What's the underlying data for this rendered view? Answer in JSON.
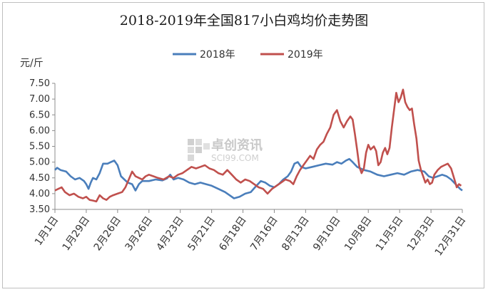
{
  "chart_data": {
    "type": "line",
    "title": "2018-2019年全国817小白鸡均价走势图",
    "ylabel": "元/斤",
    "ylim": [
      3.5,
      7.5
    ],
    "yticks": [
      "3.50",
      "4.00",
      "4.50",
      "5.00",
      "5.50",
      "6.00",
      "6.50",
      "7.00",
      "7.50"
    ],
    "xticks": [
      "1月1日",
      "1月29日",
      "2月26日",
      "3月26日",
      "4月23日",
      "5月21日",
      "6月18日",
      "7月16日",
      "8月13日",
      "9月10日",
      "10月8日",
      "11月5日",
      "12月3日",
      "12月31日"
    ],
    "xtick_days": [
      0,
      28,
      56,
      84,
      112,
      140,
      168,
      196,
      224,
      252,
      280,
      308,
      336,
      364
    ],
    "legend_position": "top",
    "grid": false,
    "watermark": {
      "text": "卓创资讯",
      "sub": "SCI99.COM"
    },
    "series": [
      {
        "name": "2018年",
        "color": "#4a7ebb",
        "points": [
          [
            0,
            4.75
          ],
          [
            2,
            4.82
          ],
          [
            5,
            4.75
          ],
          [
            10,
            4.7
          ],
          [
            14,
            4.55
          ],
          [
            18,
            4.45
          ],
          [
            22,
            4.5
          ],
          [
            26,
            4.4
          ],
          [
            28,
            4.3
          ],
          [
            30,
            4.15
          ],
          [
            32,
            4.35
          ],
          [
            34,
            4.5
          ],
          [
            37,
            4.45
          ],
          [
            40,
            4.65
          ],
          [
            43,
            4.95
          ],
          [
            47,
            4.95
          ],
          [
            50,
            5.0
          ],
          [
            53,
            5.05
          ],
          [
            56,
            4.9
          ],
          [
            59,
            4.55
          ],
          [
            62,
            4.45
          ],
          [
            65,
            4.35
          ],
          [
            69,
            4.3
          ],
          [
            72,
            4.1
          ],
          [
            75,
            4.3
          ],
          [
            78,
            4.4
          ],
          [
            84,
            4.4
          ],
          [
            90,
            4.45
          ],
          [
            96,
            4.42
          ],
          [
            100,
            4.48
          ],
          [
            103,
            4.6
          ],
          [
            106,
            4.45
          ],
          [
            110,
            4.5
          ],
          [
            115,
            4.45
          ],
          [
            120,
            4.35
          ],
          [
            125,
            4.3
          ],
          [
            130,
            4.35
          ],
          [
            135,
            4.3
          ],
          [
            140,
            4.25
          ],
          [
            146,
            4.15
          ],
          [
            152,
            4.05
          ],
          [
            156,
            3.95
          ],
          [
            160,
            3.85
          ],
          [
            165,
            3.9
          ],
          [
            170,
            4.0
          ],
          [
            175,
            4.05
          ],
          [
            180,
            4.25
          ],
          [
            184,
            4.4
          ],
          [
            188,
            4.35
          ],
          [
            192,
            4.25
          ],
          [
            196,
            4.2
          ],
          [
            200,
            4.3
          ],
          [
            204,
            4.45
          ],
          [
            208,
            4.55
          ],
          [
            211,
            4.7
          ],
          [
            214,
            4.95
          ],
          [
            217,
            5.0
          ],
          [
            220,
            4.85
          ],
          [
            224,
            4.8
          ],
          [
            230,
            4.85
          ],
          [
            236,
            4.9
          ],
          [
            242,
            4.95
          ],
          [
            248,
            4.92
          ],
          [
            252,
            5.0
          ],
          [
            256,
            4.95
          ],
          [
            260,
            5.05
          ],
          [
            263,
            5.1
          ],
          [
            266,
            5.0
          ],
          [
            270,
            4.85
          ],
          [
            276,
            4.75
          ],
          [
            282,
            4.7
          ],
          [
            288,
            4.6
          ],
          [
            294,
            4.55
          ],
          [
            300,
            4.6
          ],
          [
            306,
            4.65
          ],
          [
            312,
            4.6
          ],
          [
            318,
            4.7
          ],
          [
            324,
            4.75
          ],
          [
            330,
            4.7
          ],
          [
            334,
            4.55
          ],
          [
            338,
            4.5
          ],
          [
            342,
            4.55
          ],
          [
            346,
            4.6
          ],
          [
            350,
            4.55
          ],
          [
            354,
            4.45
          ],
          [
            358,
            4.3
          ],
          [
            362,
            4.15
          ],
          [
            364,
            4.1
          ]
        ]
      },
      {
        "name": "2019年",
        "color": "#c0504d",
        "points": [
          [
            0,
            4.1
          ],
          [
            3,
            4.15
          ],
          [
            6,
            4.2
          ],
          [
            9,
            4.05
          ],
          [
            13,
            3.95
          ],
          [
            17,
            4.0
          ],
          [
            21,
            3.9
          ],
          [
            25,
            3.85
          ],
          [
            28,
            3.9
          ],
          [
            31,
            3.8
          ],
          [
            34,
            3.78
          ],
          [
            37,
            3.75
          ],
          [
            40,
            3.95
          ],
          [
            43,
            3.85
          ],
          [
            46,
            3.8
          ],
          [
            49,
            3.9
          ],
          [
            52,
            3.95
          ],
          [
            56,
            4.0
          ],
          [
            60,
            4.05
          ],
          [
            63,
            4.2
          ],
          [
            66,
            4.45
          ],
          [
            69,
            4.7
          ],
          [
            72,
            4.55
          ],
          [
            75,
            4.5
          ],
          [
            78,
            4.45
          ],
          [
            81,
            4.55
          ],
          [
            84,
            4.6
          ],
          [
            88,
            4.55
          ],
          [
            92,
            4.5
          ],
          [
            97,
            4.45
          ],
          [
            102,
            4.55
          ],
          [
            106,
            4.5
          ],
          [
            110,
            4.6
          ],
          [
            114,
            4.65
          ],
          [
            118,
            4.75
          ],
          [
            122,
            4.85
          ],
          [
            126,
            4.8
          ],
          [
            130,
            4.85
          ],
          [
            134,
            4.9
          ],
          [
            138,
            4.8
          ],
          [
            142,
            4.75
          ],
          [
            146,
            4.65
          ],
          [
            150,
            4.6
          ],
          [
            154,
            4.75
          ],
          [
            158,
            4.6
          ],
          [
            162,
            4.45
          ],
          [
            166,
            4.35
          ],
          [
            170,
            4.45
          ],
          [
            174,
            4.4
          ],
          [
            178,
            4.3
          ],
          [
            182,
            4.2
          ],
          [
            186,
            4.15
          ],
          [
            190,
            4.0
          ],
          [
            194,
            4.15
          ],
          [
            198,
            4.25
          ],
          [
            202,
            4.35
          ],
          [
            206,
            4.45
          ],
          [
            210,
            4.4
          ],
          [
            213,
            4.3
          ],
          [
            216,
            4.55
          ],
          [
            219,
            4.75
          ],
          [
            222,
            4.9
          ],
          [
            225,
            5.05
          ],
          [
            228,
            5.2
          ],
          [
            231,
            5.1
          ],
          [
            234,
            5.4
          ],
          [
            237,
            5.55
          ],
          [
            240,
            5.65
          ],
          [
            243,
            5.9
          ],
          [
            246,
            6.1
          ],
          [
            249,
            6.5
          ],
          [
            252,
            6.65
          ],
          [
            255,
            6.3
          ],
          [
            258,
            6.1
          ],
          [
            261,
            6.3
          ],
          [
            264,
            6.45
          ],
          [
            266,
            6.35
          ],
          [
            268,
            5.9
          ],
          [
            270,
            5.4
          ],
          [
            272,
            4.85
          ],
          [
            274,
            4.65
          ],
          [
            276,
            4.8
          ],
          [
            278,
            5.3
          ],
          [
            280,
            5.55
          ],
          [
            282,
            5.4
          ],
          [
            285,
            5.5
          ],
          [
            287,
            5.35
          ],
          [
            289,
            4.9
          ],
          [
            291,
            5.0
          ],
          [
            293,
            5.3
          ],
          [
            295,
            5.45
          ],
          [
            297,
            5.25
          ],
          [
            299,
            5.45
          ],
          [
            301,
            6.1
          ],
          [
            303,
            6.65
          ],
          [
            305,
            7.2
          ],
          [
            307,
            6.9
          ],
          [
            309,
            7.05
          ],
          [
            311,
            7.3
          ],
          [
            313,
            6.9
          ],
          [
            315,
            6.75
          ],
          [
            317,
            6.65
          ],
          [
            319,
            6.7
          ],
          [
            321,
            6.2
          ],
          [
            323,
            5.75
          ],
          [
            325,
            5.05
          ],
          [
            327,
            4.75
          ],
          [
            329,
            4.55
          ],
          [
            331,
            4.35
          ],
          [
            333,
            4.45
          ],
          [
            335,
            4.3
          ],
          [
            337,
            4.35
          ],
          [
            339,
            4.6
          ],
          [
            342,
            4.75
          ],
          [
            345,
            4.85
          ],
          [
            348,
            4.9
          ],
          [
            351,
            4.95
          ],
          [
            354,
            4.8
          ],
          [
            357,
            4.45
          ],
          [
            359,
            4.2
          ],
          [
            361,
            4.3
          ],
          [
            363,
            4.25
          ]
        ]
      }
    ]
  }
}
